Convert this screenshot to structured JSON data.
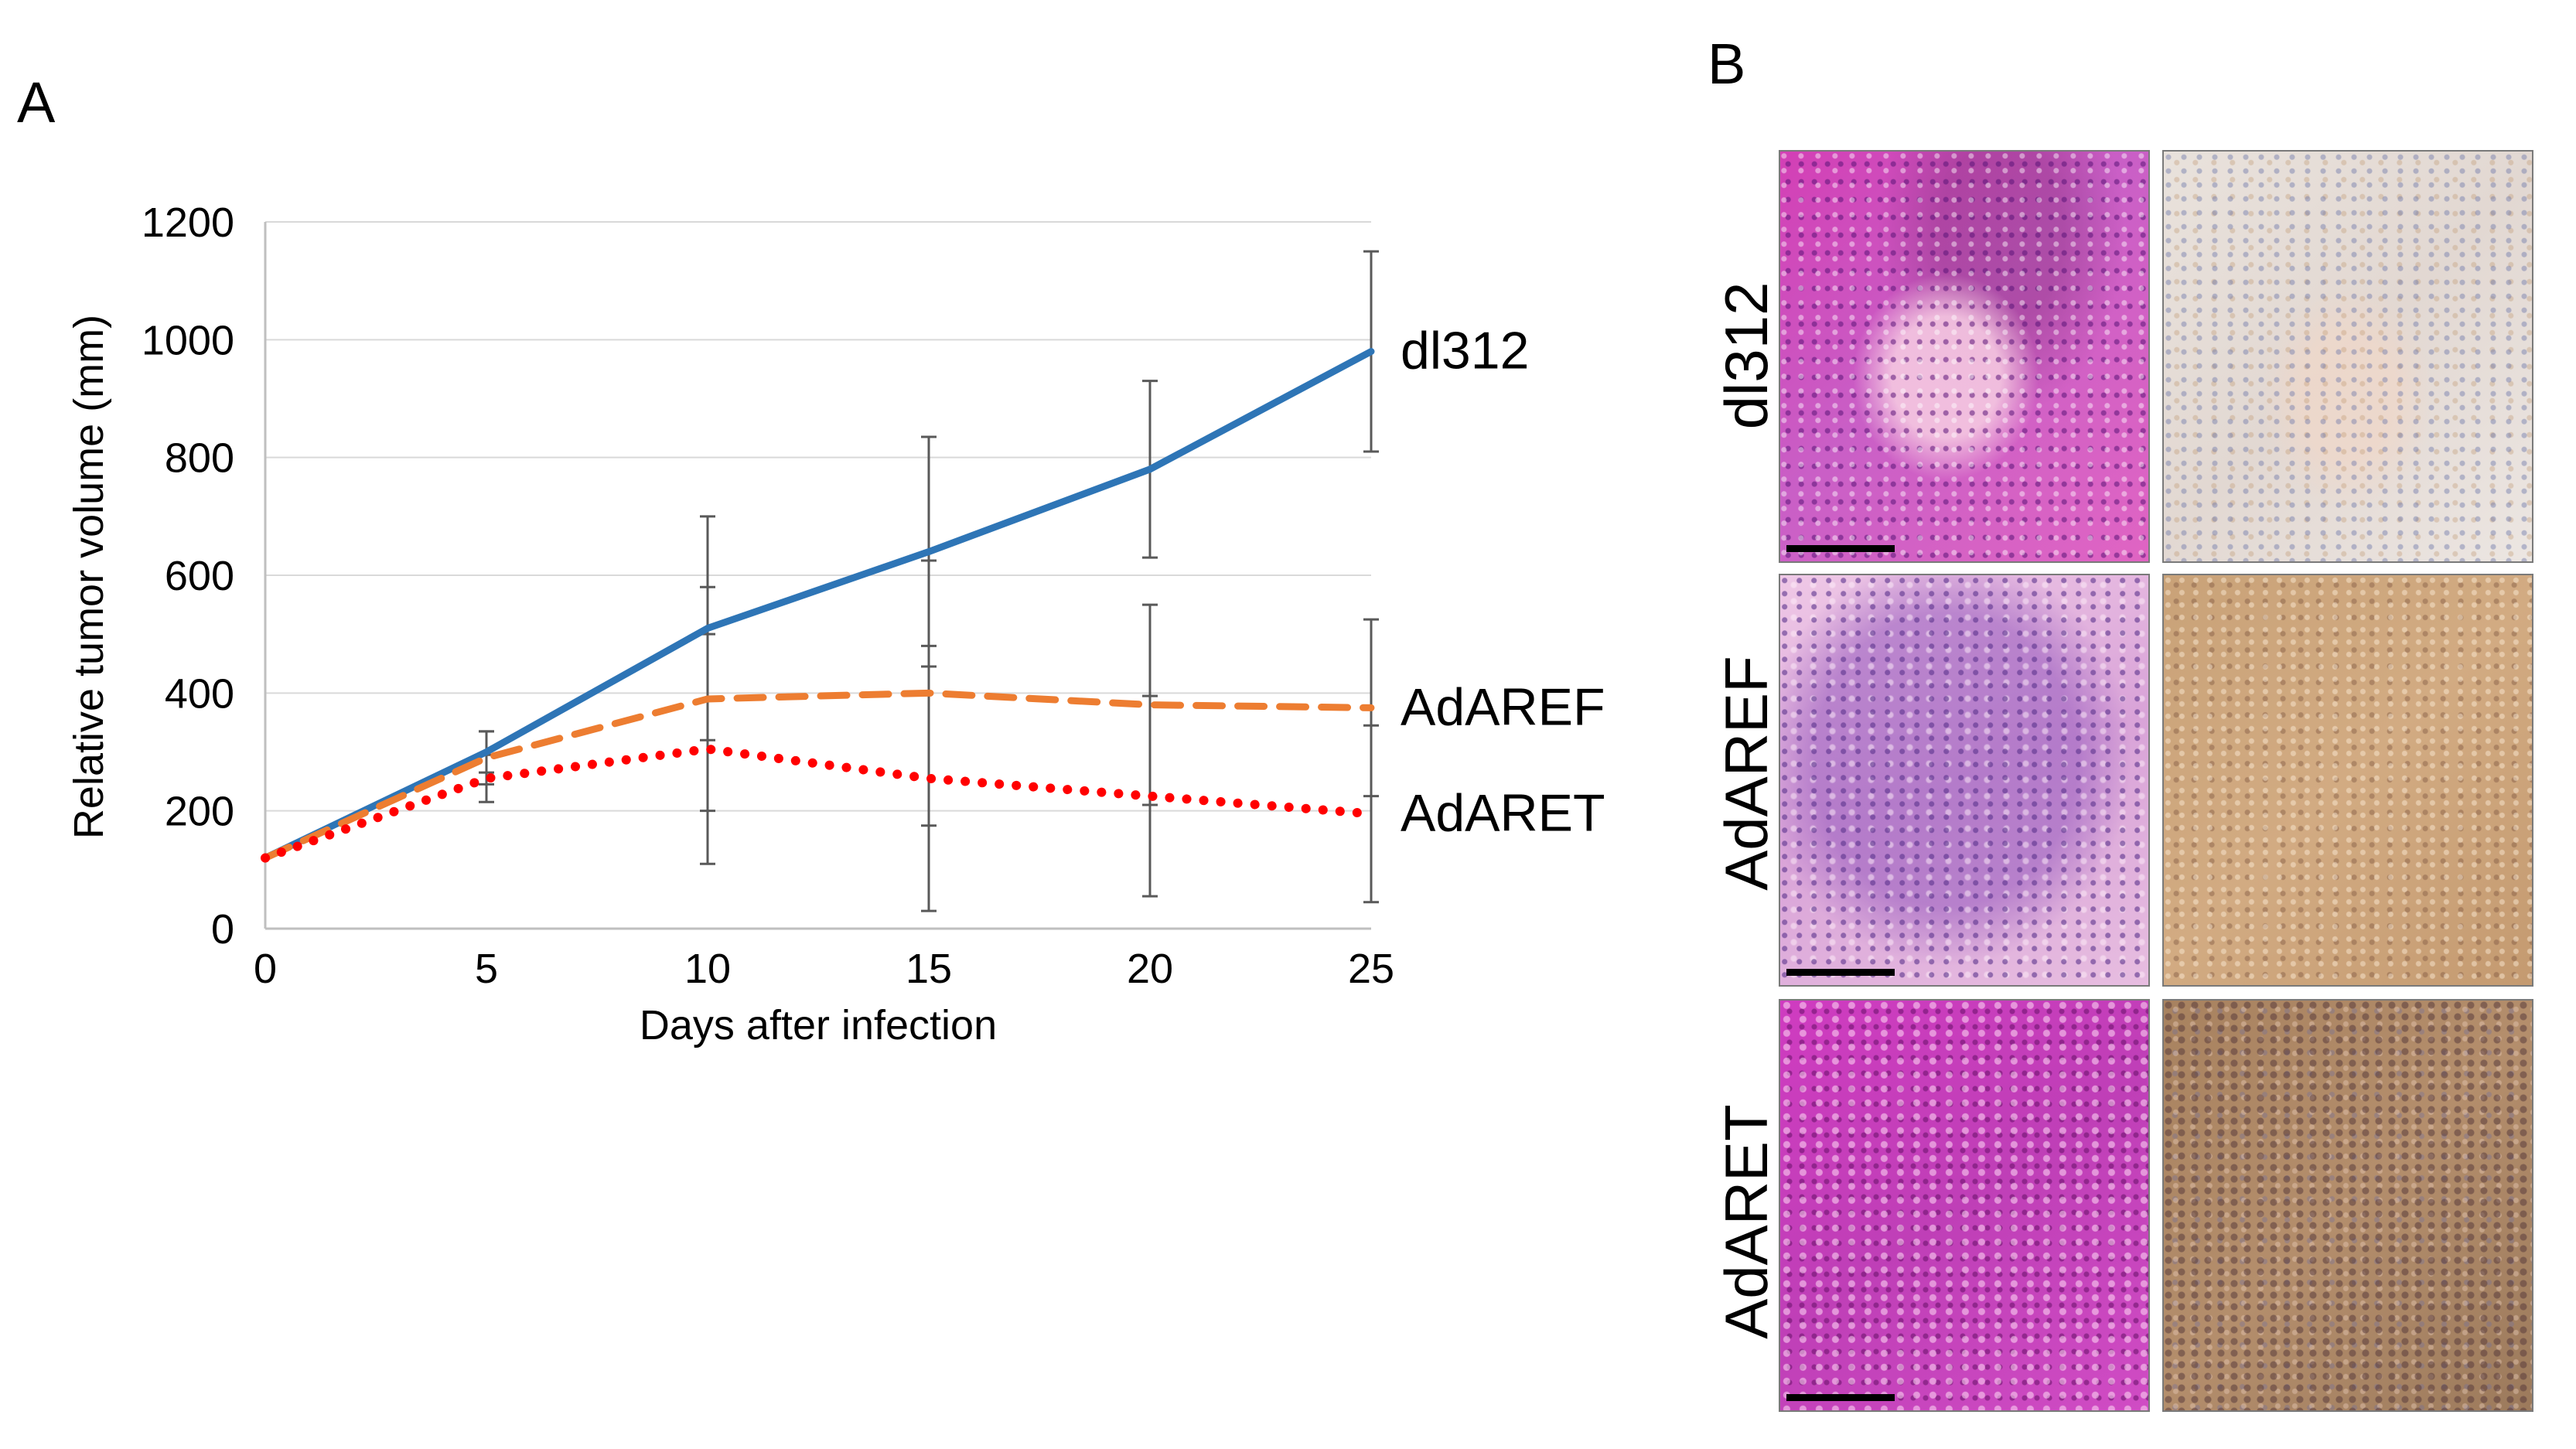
{
  "panel_a_label": "A",
  "panel_b_label": "B",
  "chart_data": {
    "type": "line",
    "xlabel": "Days after infection",
    "ylabel": "Relative tumor volume (mm)",
    "x": [
      0,
      5,
      10,
      15,
      20,
      25
    ],
    "xlim": [
      0,
      25
    ],
    "ylim": [
      0,
      1200
    ],
    "xticks": [
      0,
      5,
      10,
      15,
      20,
      25
    ],
    "yticks": [
      0,
      200,
      400,
      600,
      800,
      1000,
      1200
    ],
    "grid": "horizontal",
    "legend": "end-of-line labels",
    "series": [
      {
        "name": "dl312",
        "color": "#2e75b6",
        "style": "solid",
        "values": [
          120,
          300,
          510,
          640,
          780,
          980
        ],
        "error": [
          0,
          35,
          190,
          195,
          150,
          170
        ]
      },
      {
        "name": "AdAREF",
        "color": "#ed7d31",
        "style": "dashed",
        "values": [
          120,
          290,
          390,
          400,
          380,
          375
        ],
        "error": [
          0,
          45,
          190,
          225,
          170,
          150
        ]
      },
      {
        "name": "AdARET",
        "color": "#ff0000",
        "style": "dotted",
        "values": [
          120,
          255,
          305,
          255,
          225,
          195
        ],
        "error": [
          0,
          40,
          195,
          225,
          170,
          150
        ]
      }
    ]
  },
  "panel_b": {
    "rows": [
      {
        "label": "dl312",
        "he_style": "he1",
        "ihc_style": "ihc1"
      },
      {
        "label": "AdAREF",
        "he_style": "he2",
        "ihc_style": "ihc2"
      },
      {
        "label": "AdARET",
        "he_style": "he3",
        "ihc_style": "ihc3"
      }
    ]
  }
}
